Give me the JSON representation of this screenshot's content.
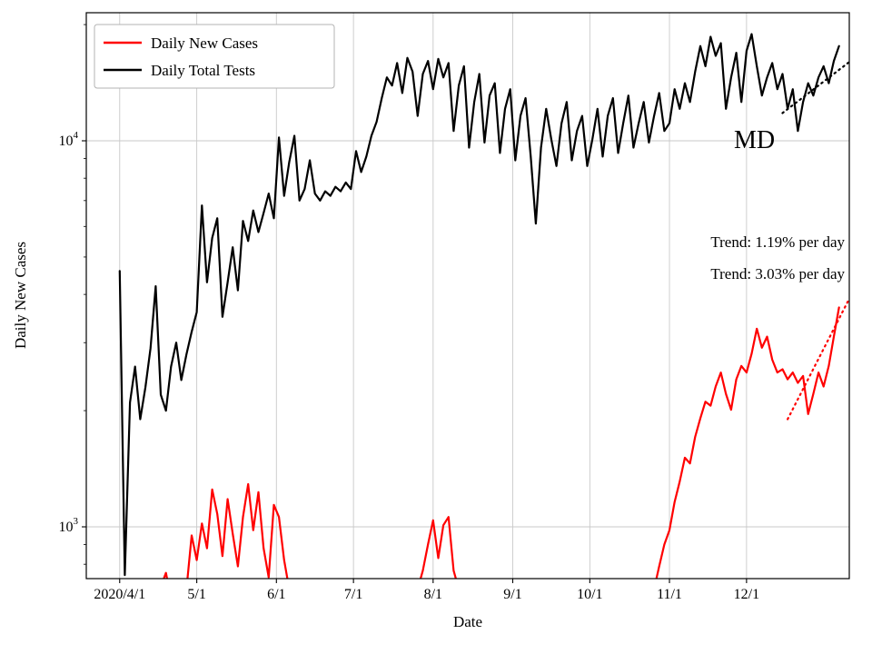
{
  "chart_data": {
    "type": "line",
    "title": "",
    "xlabel": "Date",
    "ylabel": "Daily New Cases",
    "y_scale": "log",
    "ylim": [
      734,
      21500
    ],
    "x_range": [
      -13,
      284
    ],
    "x_start": 0,
    "x_step": 2,
    "grid": true,
    "legend_position": "upper-left",
    "x_ticks": [
      {
        "t": 0,
        "label": "2020/4/1"
      },
      {
        "t": 30,
        "label": "5/1"
      },
      {
        "t": 61,
        "label": "6/1"
      },
      {
        "t": 91,
        "label": "7/1"
      },
      {
        "t": 122,
        "label": "8/1"
      },
      {
        "t": 153,
        "label": "9/1"
      },
      {
        "t": 183,
        "label": "10/1"
      },
      {
        "t": 214,
        "label": "11/1"
      },
      {
        "t": 244,
        "label": "12/1"
      }
    ],
    "y_ticks": [
      {
        "v": 1000,
        "base": "10",
        "exp": "3"
      },
      {
        "v": 10000,
        "base": "10",
        "exp": "4"
      }
    ],
    "y_minor_ticks": [
      800,
      900,
      2000,
      3000,
      4000,
      5000,
      6000,
      7000,
      8000,
      9000,
      20000
    ],
    "series": [
      {
        "name": "Daily New Cases",
        "color": "#ff0000",
        "values": [
          650,
          650,
          650,
          650,
          650,
          650,
          680,
          650,
          700,
          760,
          650,
          720,
          650,
          690,
          950,
          820,
          1020,
          880,
          1250,
          1080,
          840,
          1180,
          960,
          790,
          1060,
          1290,
          980,
          1230,
          880,
          740,
          1140,
          1060,
          820,
          690,
          730,
          650,
          650,
          690,
          650,
          650,
          650,
          650,
          650,
          650,
          650,
          650,
          650,
          650,
          650,
          650,
          650,
          650,
          650,
          650,
          650,
          690,
          650,
          730,
          690,
          770,
          900,
          1040,
          830,
          1010,
          1060,
          770,
          690,
          650,
          730,
          650,
          650,
          650,
          650,
          650,
          650,
          650,
          650,
          650,
          700,
          650,
          690,
          650,
          650,
          650,
          650,
          650,
          650,
          650,
          650,
          650,
          650,
          650,
          650,
          650,
          650,
          650,
          650,
          650,
          650,
          650,
          650,
          650,
          690,
          730,
          690,
          790,
          900,
          980,
          1160,
          1310,
          1510,
          1460,
          1710,
          1910,
          2110,
          2060,
          2310,
          2510,
          2210,
          2010,
          2410,
          2610,
          2510,
          2810,
          3260,
          2910,
          3110,
          2710,
          2510,
          2560,
          2410,
          2510,
          2360,
          2460,
          1960,
          2210,
          2510,
          2310,
          2610,
          3110,
          3700
        ]
      },
      {
        "name": "Daily Total Tests",
        "color": "#000000",
        "values": [
          4600,
          750,
          2100,
          2600,
          1900,
          2300,
          2900,
          4200,
          2200,
          2000,
          2600,
          3000,
          2400,
          2800,
          3200,
          3600,
          6800,
          4300,
          5600,
          6300,
          3500,
          4300,
          5300,
          4100,
          6200,
          5500,
          6600,
          5800,
          6500,
          7300,
          6300,
          10200,
          7200,
          8800,
          10300,
          7000,
          7500,
          8900,
          7300,
          7000,
          7400,
          7200,
          7600,
          7400,
          7800,
          7500,
          9400,
          8300,
          9100,
          10300,
          11200,
          12900,
          14600,
          13900,
          15900,
          13300,
          16400,
          15100,
          11600,
          14900,
          16100,
          13600,
          16300,
          14600,
          15900,
          10600,
          13900,
          15600,
          9600,
          12600,
          14900,
          9900,
          13100,
          14100,
          9300,
          12100,
          13600,
          8900,
          11600,
          12900,
          9100,
          6100,
          9600,
          12100,
          10100,
          8600,
          11100,
          12600,
          8900,
          10600,
          11600,
          8600,
          10100,
          12100,
          9100,
          11600,
          12900,
          9300,
          11100,
          13100,
          9600,
          11100,
          12600,
          9900,
          11600,
          13300,
          10600,
          11100,
          13600,
          12100,
          14100,
          12600,
          15100,
          17600,
          15600,
          18600,
          16600,
          17900,
          12100,
          14600,
          16900,
          12600,
          17100,
          18900,
          15600,
          13100,
          14600,
          15900,
          13600,
          14900,
          12100,
          13600,
          10600,
          12600,
          14100,
          13100,
          14600,
          15600,
          14100,
          16100,
          17600
        ]
      }
    ],
    "trend_lines": [
      {
        "name": "tests-trend",
        "color": "#000000",
        "t": [
          258,
          284
        ],
        "values": [
          11800,
          16000
        ],
        "style": "dotted"
      },
      {
        "name": "cases-trend",
        "color": "#ff0000",
        "t": [
          260,
          284
        ],
        "values": [
          1900,
          3900
        ],
        "style": "dotted"
      }
    ],
    "legend": {
      "items": [
        {
          "label": "Daily New Cases",
          "color": "#ff0000"
        },
        {
          "label": "Daily Total Tests",
          "color": "#000000"
        }
      ]
    },
    "annotations": {
      "state": "MD",
      "trend1": "Trend: 1.19% per day",
      "trend2": "Trend: 3.03% per day"
    }
  }
}
